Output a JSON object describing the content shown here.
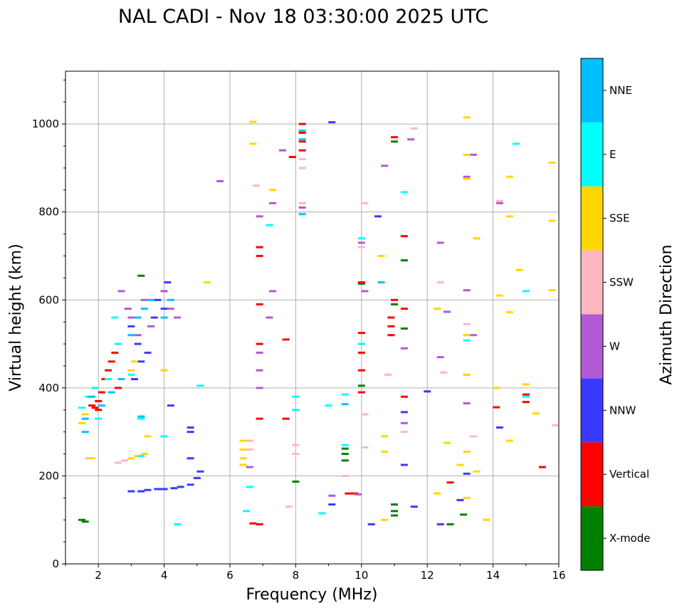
{
  "chart_data": {
    "type": "scatter",
    "title": "NAL CADI - Nov 18 03:30:00 2025 UTC",
    "xlabel": "Frequency (MHz)",
    "ylabel": "Virtual height (km)",
    "xlim": [
      1,
      16
    ],
    "ylim": [
      0,
      1120
    ],
    "xticks": [
      2,
      4,
      6,
      8,
      10,
      12,
      14,
      16
    ],
    "xtick_labels": [
      "2",
      "4",
      "6",
      "8",
      "10",
      "12",
      "14",
      "16"
    ],
    "yticks": [
      0,
      200,
      400,
      600,
      800,
      1000
    ],
    "ytick_labels": [
      "0",
      "200",
      "400",
      "600",
      "800",
      "1000"
    ],
    "grid": true,
    "colorbar": {
      "label": "Azimuth Direction",
      "categories": [
        {
          "name": "X-mode",
          "color": "#008000"
        },
        {
          "name": "Vertical",
          "color": "#ff0000"
        },
        {
          "name": "NNW",
          "color": "#3a3aff"
        },
        {
          "name": "W",
          "color": "#b05ad6"
        },
        {
          "name": "SSW",
          "color": "#ffb6c1"
        },
        {
          "name": "SSE",
          "color": "#ffd700"
        },
        {
          "name": "E",
          "color": "#00ffff"
        },
        {
          "name": "NNE",
          "color": "#00bfff"
        }
      ]
    },
    "series": [
      {
        "name": "X-mode",
        "points": [
          [
            1.5,
            100
          ],
          [
            1.6,
            96
          ],
          [
            3.3,
            655
          ],
          [
            8.0,
            187
          ],
          [
            9.5,
            235
          ],
          [
            9.5,
            250
          ],
          [
            9.5,
            262
          ],
          [
            10.0,
            405
          ],
          [
            10.0,
            637
          ],
          [
            11.0,
            110
          ],
          [
            11.0,
            120
          ],
          [
            11.0,
            135
          ],
          [
            11.0,
            960
          ],
          [
            11.3,
            690
          ],
          [
            11.3,
            535
          ],
          [
            12.7,
            90
          ],
          [
            13.1,
            112
          ],
          [
            11.0,
            590
          ]
        ]
      },
      {
        "name": "Vertical",
        "points": [
          [
            1.8,
            360
          ],
          [
            2.0,
            370
          ],
          [
            2.1,
            390
          ],
          [
            2.2,
            420
          ],
          [
            2.3,
            440
          ],
          [
            2.4,
            460
          ],
          [
            2.5,
            480
          ],
          [
            2.0,
            350
          ],
          [
            1.9,
            355
          ],
          [
            2.6,
            400
          ],
          [
            6.7,
            92
          ],
          [
            6.9,
            90
          ],
          [
            6.9,
            330
          ],
          [
            6.9,
            700
          ],
          [
            6.9,
            720
          ],
          [
            6.9,
            590
          ],
          [
            6.9,
            500
          ],
          [
            7.7,
            330
          ],
          [
            7.7,
            510
          ],
          [
            7.9,
            925
          ],
          [
            8.2,
            940
          ],
          [
            8.2,
            960
          ],
          [
            8.2,
            980
          ],
          [
            8.2,
            1000
          ],
          [
            9.6,
            160
          ],
          [
            9.8,
            160
          ],
          [
            10.0,
            390
          ],
          [
            10.0,
            440
          ],
          [
            10.0,
            480
          ],
          [
            10.0,
            525
          ],
          [
            10.0,
            640
          ],
          [
            10.9,
            520
          ],
          [
            10.9,
            540
          ],
          [
            10.9,
            560
          ],
          [
            11.0,
            600
          ],
          [
            11.0,
            970
          ],
          [
            11.3,
            380
          ],
          [
            11.3,
            580
          ],
          [
            11.3,
            745
          ],
          [
            12.7,
            185
          ],
          [
            14.1,
            356
          ],
          [
            15.0,
            368
          ],
          [
            15.0,
            385
          ],
          [
            15.5,
            220
          ]
        ]
      },
      {
        "name": "NNW",
        "points": [
          [
            3.0,
            165
          ],
          [
            3.3,
            165
          ],
          [
            3.5,
            168
          ],
          [
            3.8,
            170
          ],
          [
            4.0,
            170
          ],
          [
            4.3,
            172
          ],
          [
            4.5,
            175
          ],
          [
            4.8,
            180
          ],
          [
            5.0,
            195
          ],
          [
            5.1,
            210
          ],
          [
            4.8,
            240
          ],
          [
            4.8,
            310
          ],
          [
            4.8,
            300
          ],
          [
            4.2,
            360
          ],
          [
            3.1,
            420
          ],
          [
            3.3,
            460
          ],
          [
            3.5,
            480
          ],
          [
            3.7,
            560
          ],
          [
            3.8,
            600
          ],
          [
            4.0,
            580
          ],
          [
            4.1,
            640
          ],
          [
            3.0,
            540
          ],
          [
            3.2,
            500
          ],
          [
            9.1,
            135
          ],
          [
            10.3,
            90
          ],
          [
            11.3,
            225
          ],
          [
            11.3,
            345
          ],
          [
            11.6,
            130
          ],
          [
            12.4,
            90
          ],
          [
            13.0,
            145
          ],
          [
            13.2,
            205
          ],
          [
            14.2,
            310
          ],
          [
            12.0,
            392
          ],
          [
            10.5,
            790
          ],
          [
            9.1,
            1004
          ]
        ]
      },
      {
        "name": "W",
        "points": [
          [
            2.7,
            620
          ],
          [
            2.9,
            580
          ],
          [
            3.0,
            560
          ],
          [
            3.2,
            520
          ],
          [
            3.4,
            600
          ],
          [
            3.6,
            540
          ],
          [
            4.0,
            620
          ],
          [
            4.2,
            580
          ],
          [
            4.4,
            560
          ],
          [
            5.7,
            870
          ],
          [
            6.6,
            220
          ],
          [
            6.9,
            400
          ],
          [
            6.9,
            440
          ],
          [
            6.9,
            480
          ],
          [
            6.9,
            790
          ],
          [
            7.2,
            560
          ],
          [
            7.3,
            620
          ],
          [
            7.3,
            820
          ],
          [
            7.6,
            940
          ],
          [
            8.2,
            810
          ],
          [
            9.1,
            155
          ],
          [
            9.9,
            158
          ],
          [
            10.0,
            730
          ],
          [
            10.1,
            620
          ],
          [
            10.7,
            905
          ],
          [
            11.3,
            320
          ],
          [
            11.3,
            490
          ],
          [
            11.5,
            965
          ],
          [
            12.4,
            470
          ],
          [
            12.4,
            730
          ],
          [
            12.6,
            573
          ],
          [
            13.2,
            365
          ],
          [
            13.2,
            622
          ],
          [
            13.2,
            880
          ],
          [
            13.4,
            930
          ],
          [
            13.4,
            520
          ],
          [
            14.2,
            820
          ]
        ]
      },
      {
        "name": "SSW",
        "points": [
          [
            2.6,
            230
          ],
          [
            2.8,
            235
          ],
          [
            1.7,
            240
          ],
          [
            6.6,
            280
          ],
          [
            6.6,
            260
          ],
          [
            6.8,
            860
          ],
          [
            7.8,
            130
          ],
          [
            8.0,
            250
          ],
          [
            8.0,
            270
          ],
          [
            8.2,
            820
          ],
          [
            8.2,
            900
          ],
          [
            8.2,
            920
          ],
          [
            9.5,
            200
          ],
          [
            10.0,
            720
          ],
          [
            10.1,
            340
          ],
          [
            10.1,
            265
          ],
          [
            10.1,
            820
          ],
          [
            10.8,
            430
          ],
          [
            11.3,
            300
          ],
          [
            11.6,
            990
          ],
          [
            12.4,
            640
          ],
          [
            12.5,
            435
          ],
          [
            13.2,
            545
          ],
          [
            13.4,
            290
          ],
          [
            14.2,
            825
          ],
          [
            15.9,
            315
          ]
        ]
      },
      {
        "name": "SSE",
        "points": [
          [
            1.5,
            320
          ],
          [
            1.6,
            340
          ],
          [
            1.8,
            240
          ],
          [
            3.0,
            240
          ],
          [
            3.2,
            245
          ],
          [
            3.4,
            250
          ],
          [
            3.5,
            290
          ],
          [
            3.0,
            440
          ],
          [
            3.1,
            460
          ],
          [
            4.0,
            440
          ],
          [
            5.3,
            640
          ],
          [
            6.4,
            240
          ],
          [
            6.4,
            260
          ],
          [
            6.4,
            280
          ],
          [
            6.4,
            225
          ],
          [
            6.7,
            1005
          ],
          [
            6.7,
            955
          ],
          [
            7.3,
            850
          ],
          [
            10.0,
            500
          ],
          [
            10.6,
            700
          ],
          [
            10.7,
            290
          ],
          [
            10.7,
            255
          ],
          [
            10.7,
            100
          ],
          [
            12.3,
            160
          ],
          [
            12.3,
            580
          ],
          [
            12.6,
            275
          ],
          [
            13.0,
            225
          ],
          [
            13.2,
            255
          ],
          [
            13.2,
            150
          ],
          [
            13.2,
            430
          ],
          [
            13.2,
            520
          ],
          [
            13.2,
            875
          ],
          [
            13.2,
            930
          ],
          [
            13.5,
            740
          ],
          [
            13.5,
            210
          ],
          [
            13.8,
            100
          ],
          [
            14.1,
            400
          ],
          [
            14.2,
            610
          ],
          [
            14.5,
            280
          ],
          [
            14.5,
            572
          ],
          [
            14.5,
            880
          ],
          [
            14.5,
            790
          ],
          [
            14.8,
            668
          ],
          [
            15.0,
            408
          ],
          [
            15.3,
            342
          ],
          [
            15.8,
            622
          ],
          [
            15.8,
            780
          ],
          [
            15.8,
            912
          ],
          [
            13.2,
            1015
          ]
        ]
      },
      {
        "name": "E",
        "points": [
          [
            1.5,
            355
          ],
          [
            1.7,
            380
          ],
          [
            1.9,
            400
          ],
          [
            2.0,
            330
          ],
          [
            2.3,
            420
          ],
          [
            2.5,
            560
          ],
          [
            2.6,
            500
          ],
          [
            3.0,
            430
          ],
          [
            3.3,
            330
          ],
          [
            3.3,
            245
          ],
          [
            4.0,
            290
          ],
          [
            4.4,
            90
          ],
          [
            5.1,
            405
          ],
          [
            6.5,
            120
          ],
          [
            6.6,
            175
          ],
          [
            7.2,
            770
          ],
          [
            8.0,
            350
          ],
          [
            8.0,
            380
          ],
          [
            8.8,
            115
          ],
          [
            9.0,
            360
          ],
          [
            9.5,
            270
          ],
          [
            9.5,
            385
          ],
          [
            10.0,
            740
          ],
          [
            10.0,
            500
          ],
          [
            11.3,
            845
          ],
          [
            13.2,
            508
          ],
          [
            14.7,
            955
          ],
          [
            15.0,
            620
          ],
          [
            15.0,
            380
          ]
        ]
      },
      {
        "name": "NNE",
        "points": [
          [
            1.6,
            300
          ],
          [
            1.6,
            330
          ],
          [
            1.8,
            380
          ],
          [
            2.1,
            360
          ],
          [
            2.4,
            390
          ],
          [
            2.7,
            420
          ],
          [
            3.0,
            520
          ],
          [
            3.2,
            560
          ],
          [
            3.4,
            580
          ],
          [
            3.6,
            600
          ],
          [
            4.0,
            560
          ],
          [
            4.2,
            600
          ],
          [
            3.3,
            335
          ],
          [
            8.2,
            965
          ],
          [
            8.2,
            985
          ],
          [
            8.2,
            795
          ],
          [
            9.5,
            363
          ],
          [
            10.6,
            640
          ]
        ]
      }
    ]
  }
}
